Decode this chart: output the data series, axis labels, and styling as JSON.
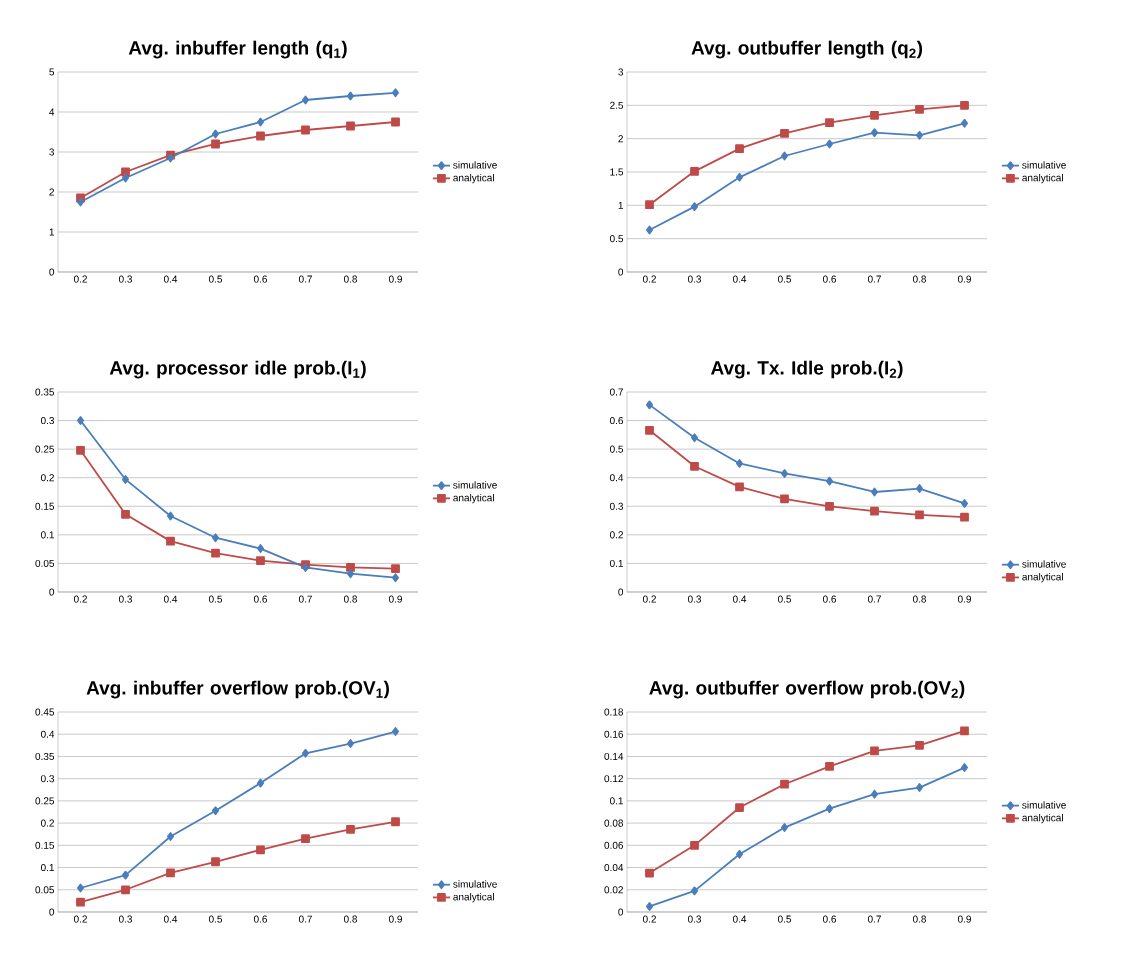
{
  "chart_data": [
    {
      "type": "line",
      "title": "Avg. inbuffer length (q$_{1}$)",
      "categories": [
        "0.2",
        "0.3",
        "0.4",
        "0.5",
        "0.6",
        "0.7",
        "0.8",
        "0.9"
      ],
      "ylim": [
        0,
        5
      ],
      "yticks": [
        0,
        1,
        2,
        3,
        4,
        5
      ],
      "grid": "y",
      "legend": "right",
      "series": [
        {
          "name": "simulative",
          "color": "#4a7ebb",
          "marker": "diamond",
          "values": [
            1.75,
            2.35,
            2.85,
            3.45,
            3.75,
            4.3,
            4.4,
            4.48
          ]
        },
        {
          "name": "analytical",
          "color": "#be4b48",
          "marker": "square",
          "values": [
            1.85,
            2.5,
            2.92,
            3.2,
            3.4,
            3.55,
            3.65,
            3.75
          ]
        }
      ]
    },
    {
      "type": "line",
      "title": "Avg. outbuffer length (q$_{2}$)",
      "categories": [
        "0.2",
        "0.3",
        "0.4",
        "0.5",
        "0.6",
        "0.7",
        "0.8",
        "0.9"
      ],
      "ylim": [
        0,
        3
      ],
      "yticks": [
        0,
        0.5,
        1,
        1.5,
        2,
        2.5,
        3
      ],
      "grid": "y",
      "legend": "right",
      "series": [
        {
          "name": "simulative",
          "color": "#4a7ebb",
          "marker": "diamond",
          "values": [
            0.63,
            0.98,
            1.42,
            1.74,
            1.92,
            2.09,
            2.05,
            2.23
          ]
        },
        {
          "name": "analytical",
          "color": "#be4b48",
          "marker": "square",
          "values": [
            1.01,
            1.51,
            1.85,
            2.08,
            2.24,
            2.35,
            2.44,
            2.5
          ]
        }
      ]
    },
    {
      "type": "line",
      "title": "Avg. processor idle prob.(I$_{1}$)",
      "categories": [
        "0.2",
        "0.3",
        "0.4",
        "0.5",
        "0.6",
        "0.7",
        "0.8",
        "0.9"
      ],
      "ylim": [
        0,
        0.35
      ],
      "yticks": [
        0,
        0.05,
        0.1,
        0.15,
        0.2,
        0.25,
        0.3,
        0.35
      ],
      "grid": "y",
      "legend": "right",
      "series": [
        {
          "name": "simulative",
          "color": "#4a7ebb",
          "marker": "diamond",
          "values": [
            0.3,
            0.197,
            0.133,
            0.095,
            0.076,
            0.043,
            0.032,
            0.025
          ]
        },
        {
          "name": "analytical",
          "color": "#be4b48",
          "marker": "square",
          "values": [
            0.248,
            0.136,
            0.089,
            0.068,
            0.055,
            0.048,
            0.043,
            0.041
          ]
        }
      ]
    },
    {
      "type": "line",
      "title": "Avg. Tx. Idle prob.(I$_{2}$)",
      "categories": [
        "0.2",
        "0.3",
        "0.4",
        "0.5",
        "0.6",
        "0.7",
        "0.8",
        "0.9"
      ],
      "ylim": [
        0,
        0.7
      ],
      "yticks": [
        0,
        0.1,
        0.2,
        0.3,
        0.4,
        0.5,
        0.6,
        0.7
      ],
      "grid": "y",
      "legend": "bottom right",
      "series": [
        {
          "name": "simulative",
          "color": "#4a7ebb",
          "marker": "diamond",
          "values": [
            0.655,
            0.54,
            0.45,
            0.415,
            0.388,
            0.35,
            0.362,
            0.31
          ]
        },
        {
          "name": "analytical",
          "color": "#be4b48",
          "marker": "square",
          "values": [
            0.566,
            0.44,
            0.368,
            0.326,
            0.3,
            0.283,
            0.27,
            0.262
          ]
        }
      ]
    },
    {
      "type": "line",
      "title": "Avg. inbuffer overflow prob.(OV$_{1}$)",
      "categories": [
        "0.2",
        "0.3",
        "0.4",
        "0.5",
        "0.6",
        "0.7",
        "0.8",
        "0.9"
      ],
      "ylim": [
        0,
        0.45
      ],
      "yticks": [
        0,
        0.05,
        0.1,
        0.15,
        0.2,
        0.25,
        0.3,
        0.35,
        0.4,
        0.45
      ],
      "grid": "y",
      "legend": "bottom right",
      "series": [
        {
          "name": "simulative",
          "color": "#4a7ebb",
          "marker": "diamond",
          "values": [
            0.054,
            0.083,
            0.17,
            0.228,
            0.29,
            0.357,
            0.379,
            0.406
          ]
        },
        {
          "name": "analytical",
          "color": "#be4b48",
          "marker": "square",
          "values": [
            0.022,
            0.05,
            0.088,
            0.113,
            0.14,
            0.165,
            0.186,
            0.203
          ]
        }
      ]
    },
    {
      "type": "line",
      "title": "Avg. outbuffer overflow prob.(OV$_{2}$)",
      "categories": [
        "0.2",
        "0.3",
        "0.4",
        "0.5",
        "0.6",
        "0.7",
        "0.8",
        "0.9"
      ],
      "ylim": [
        0,
        0.18
      ],
      "yticks": [
        0,
        0.02,
        0.04,
        0.06,
        0.08,
        0.1,
        0.12,
        0.14,
        0.16,
        0.18
      ],
      "grid": "y",
      "legend": "right",
      "series": [
        {
          "name": "simulative",
          "color": "#4a7ebb",
          "marker": "diamond",
          "values": [
            0.005,
            0.019,
            0.052,
            0.076,
            0.093,
            0.106,
            0.112,
            0.13
          ]
        },
        {
          "name": "analytical",
          "color": "#be4b48",
          "marker": "square",
          "values": [
            0.035,
            0.06,
            0.094,
            0.115,
            0.131,
            0.145,
            0.15,
            0.163
          ]
        }
      ]
    }
  ]
}
